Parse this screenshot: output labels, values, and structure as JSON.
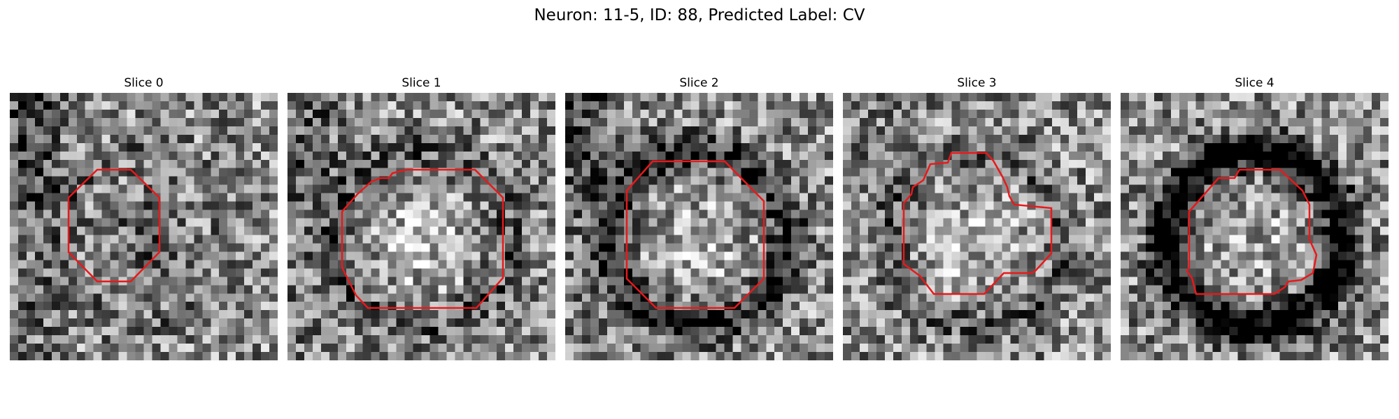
{
  "figure": {
    "title": "Neuron: 11-5, ID: 88, Predicted Label: CV"
  },
  "panels": [
    {
      "label": "Slice 0",
      "seed": 11,
      "dark_ring": 0.1,
      "center_bright": -0.18,
      "left_dark": 0.3
    },
    {
      "label": "Slice 1",
      "seed": 23,
      "dark_ring": 0.2,
      "center_bright": 0.22,
      "left_dark": 0.2
    },
    {
      "label": "Slice 2",
      "seed": 37,
      "dark_ring": 0.42,
      "center_bright": 0.15,
      "left_dark": 0.25
    },
    {
      "label": "Slice 3",
      "seed": 49,
      "dark_ring": 0.18,
      "center_bright": 0.18,
      "left_dark": 0.05
    },
    {
      "label": "Slice 4",
      "seed": 61,
      "dark_ring": 0.7,
      "center_bright": 0.12,
      "left_dark": 0.02
    }
  ],
  "style": {
    "contour_color": "#e8191b"
  }
}
